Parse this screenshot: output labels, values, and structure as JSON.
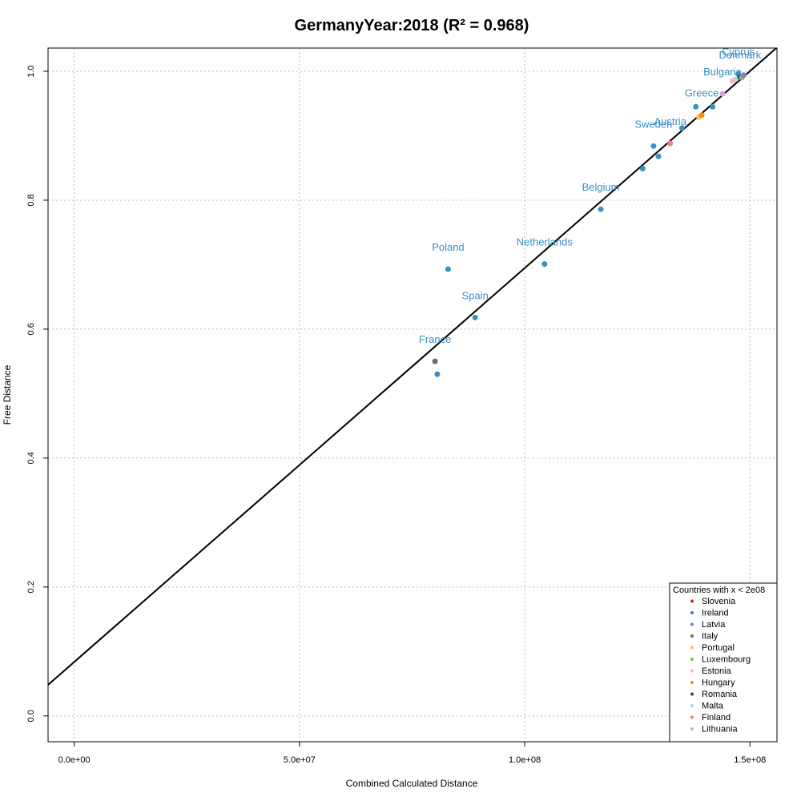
{
  "chart_data": {
    "type": "scatter",
    "title": "GermanyYear:2018 (R² = 0.968)",
    "xlabel": "Combined Calculated Distance",
    "ylabel": "Free Distance",
    "xlim": [
      -5800000,
      156000000
    ],
    "ylim": [
      -0.04,
      1.036
    ],
    "x_ticks": [
      0,
      50000000,
      100000000,
      150000000
    ],
    "x_tick_labels": [
      "0.0e+00",
      "5.0e+07",
      "1.0e+08",
      "1.5e+08"
    ],
    "y_ticks": [
      0.0,
      0.2,
      0.4,
      0.6,
      0.8,
      1.0
    ],
    "y_tick_labels": [
      "0.0",
      "0.2",
      "0.4",
      "0.6",
      "0.8",
      "1.0"
    ],
    "grid": true,
    "fit_line": {
      "intercept": 0.0837,
      "slope": 6.11e-09
    },
    "points": [
      {
        "x": 80100000,
        "y": 0.55,
        "color": "#6e6e6e",
        "label": "France"
      },
      {
        "x": 80600000,
        "y": 0.53,
        "color": "#3a8fc4",
        "label": ""
      },
      {
        "x": 83000000,
        "y": 0.693,
        "color": "#3a8fc4",
        "label": "Poland"
      },
      {
        "x": 89000000,
        "y": 0.618,
        "color": "#3a8fc4",
        "label": "Spain"
      },
      {
        "x": 104400000,
        "y": 0.701,
        "color": "#3a8fc4",
        "label": "Netherlands"
      },
      {
        "x": 116900000,
        "y": 0.786,
        "color": "#3a8fc4",
        "label": "Belgium"
      },
      {
        "x": 126200000,
        "y": 0.849,
        "color": "#3a8fc4",
        "label": ""
      },
      {
        "x": 128600000,
        "y": 0.884,
        "color": "#3a8fc4",
        "label": "Sweden"
      },
      {
        "x": 129700000,
        "y": 0.868,
        "color": "#3a8fc4",
        "label": ""
      },
      {
        "x": 132300000,
        "y": 0.888,
        "color": "#f08080",
        "label": "Austria"
      },
      {
        "x": 134900000,
        "y": 0.912,
        "color": "#3a8fc4",
        "label": ""
      },
      {
        "x": 138000000,
        "y": 0.945,
        "color": "#3a8fc4",
        "label": ""
      },
      {
        "x": 138700000,
        "y": 0.929,
        "color": "#ffc04d",
        "label": ""
      },
      {
        "x": 139300000,
        "y": 0.932,
        "color": "#ff8c00",
        "label": "Greece"
      },
      {
        "x": 141700000,
        "y": 0.945,
        "color": "#3a8fc4",
        "label": ""
      },
      {
        "x": 143900000,
        "y": 0.965,
        "color": "#dda0dd",
        "label": "Bulgaria"
      },
      {
        "x": 146100000,
        "y": 0.985,
        "color": "#ffb6c1",
        "label": ""
      },
      {
        "x": 146900000,
        "y": 0.988,
        "color": "#add8e6",
        "label": ""
      },
      {
        "x": 147400000,
        "y": 0.996,
        "color": "#3a8fc4",
        "label": "Cyprus"
      },
      {
        "x": 147800000,
        "y": 0.991,
        "color": "#1a5276",
        "label": "Denmark"
      },
      {
        "x": 148200000,
        "y": 0.99,
        "color": "#8fbc3f",
        "label": ""
      },
      {
        "x": 148600000,
        "y": 0.994,
        "color": "#9370db",
        "label": ""
      }
    ],
    "legend": {
      "title": "Countries with x < 2e08",
      "position": "bottom-right",
      "entries": [
        {
          "name": "Slovenia",
          "color": "#d62728"
        },
        {
          "name": "Ireland",
          "color": "#3a7bd5"
        },
        {
          "name": "Latvia",
          "color": "#9370db"
        },
        {
          "name": "Italy",
          "color": "#6e6e6e"
        },
        {
          "name": "Portugal",
          "color": "#ffc04d"
        },
        {
          "name": "Luxembourg",
          "color": "#8fbc3f"
        },
        {
          "name": "Estonia",
          "color": "#ffb6c1"
        },
        {
          "name": "Hungary",
          "color": "#ff8c00"
        },
        {
          "name": "Romania",
          "color": "#1a5276"
        },
        {
          "name": "Malta",
          "color": "#add8e6"
        },
        {
          "name": "Finland",
          "color": "#f08080"
        },
        {
          "name": "Lithuania",
          "color": "#dda0dd"
        }
      ]
    }
  }
}
